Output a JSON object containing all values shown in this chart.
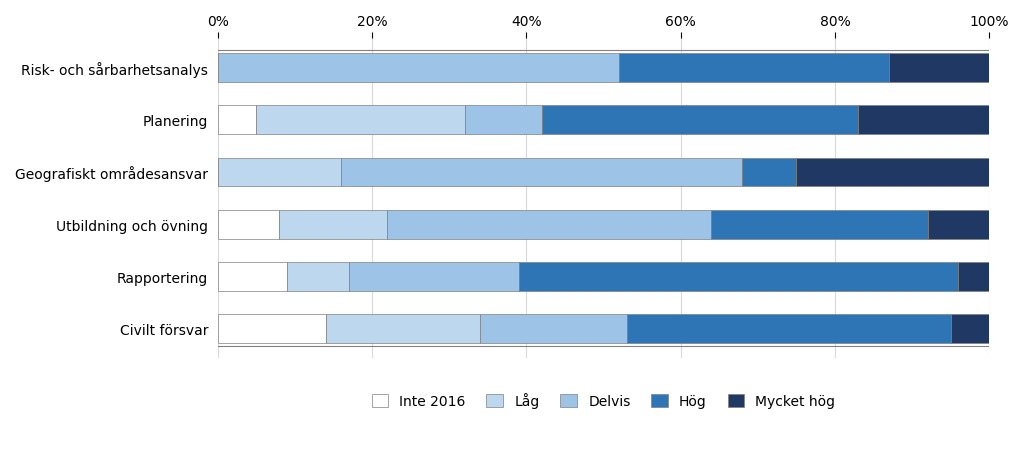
{
  "categories": [
    "Risk- och sårbarhetsanalys",
    "Planering",
    "Geografiskt områdesansvar",
    "Utbildning och övning",
    "Rapportering",
    "Civilt försvar"
  ],
  "series": {
    "Inte 2016": [
      0,
      5,
      0,
      8,
      9,
      14
    ],
    "Låg": [
      0,
      27,
      16,
      14,
      8,
      20
    ],
    "Delvis": [
      52,
      10,
      52,
      42,
      22,
      19
    ],
    "Hög": [
      35,
      41,
      7,
      28,
      57,
      42
    ],
    "Mycket hög": [
      13,
      17,
      25,
      8,
      4,
      5
    ]
  },
  "colors": {
    "Inte 2016": "#FFFFFF",
    "Låg": "#BDD7EE",
    "Delvis": "#9DC3E6",
    "Hög": "#2E75B6",
    "Mycket hög": "#1F3864"
  },
  "edge_color": "#808080",
  "legend_labels": [
    "Inte 2016",
    "Låg",
    "Delvis",
    "Hög",
    "Mycket hög"
  ],
  "xlim": [
    0,
    100
  ],
  "xticks": [
    0,
    20,
    40,
    60,
    80,
    100
  ],
  "xticklabels": [
    "0%",
    "20%",
    "40%",
    "60%",
    "80%",
    "100%"
  ],
  "bar_height": 0.55,
  "figsize": [
    10.24,
    4.52
  ],
  "dpi": 100,
  "background_color": "#FFFFFF",
  "grid_color": "#D9D9D9"
}
